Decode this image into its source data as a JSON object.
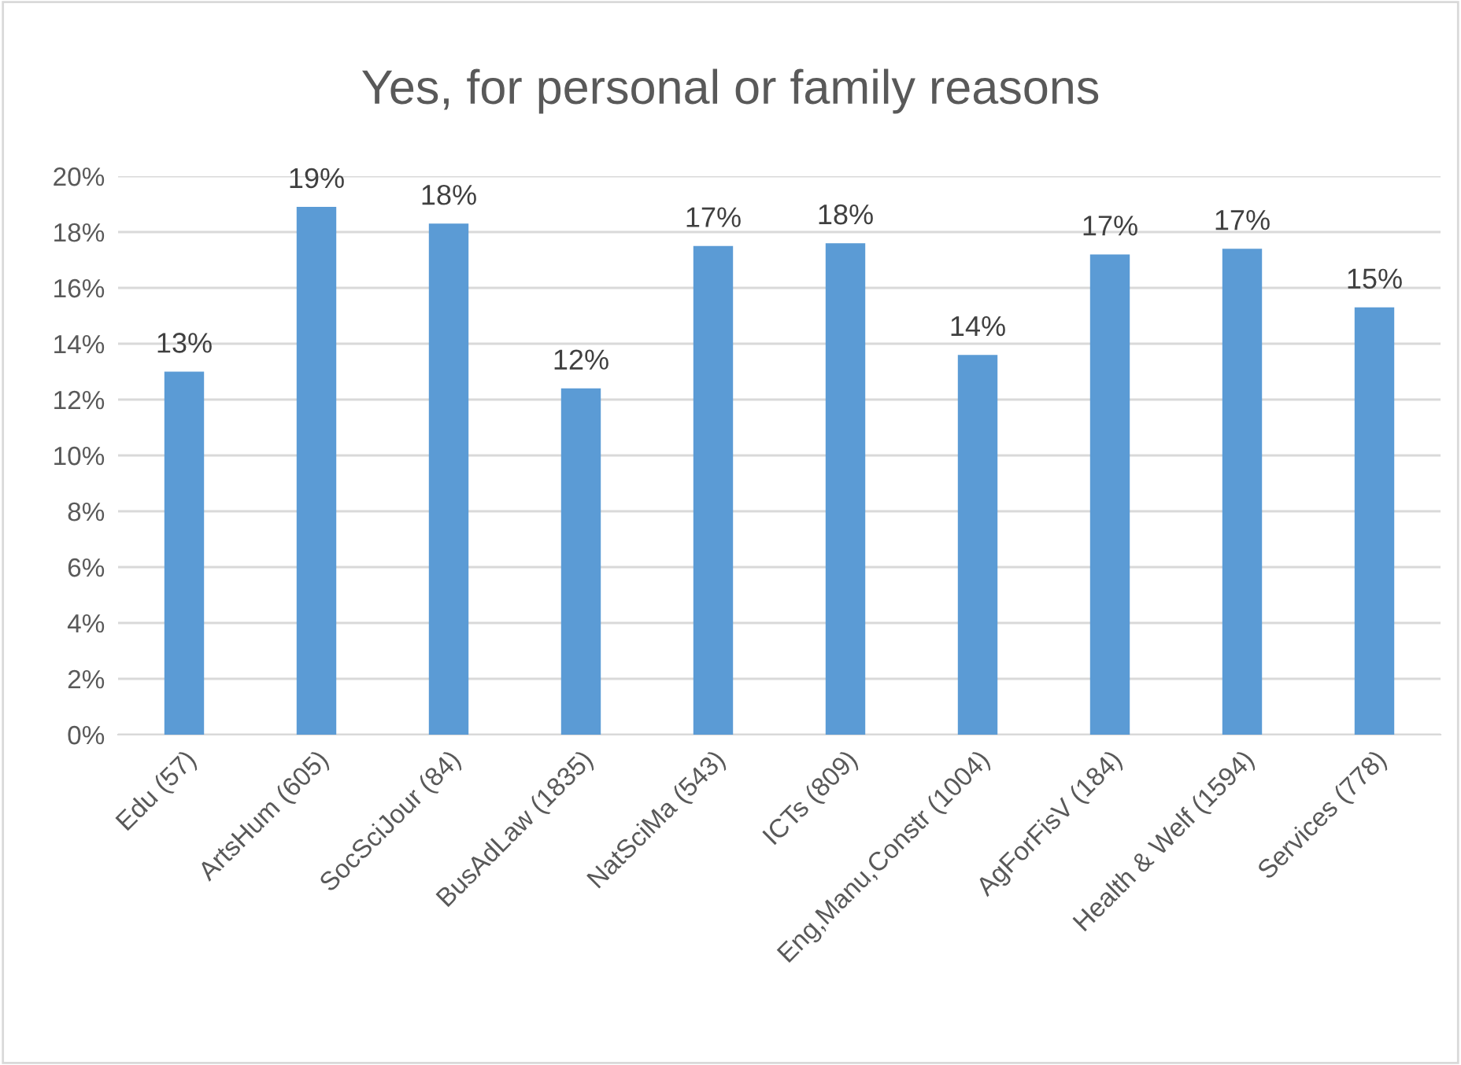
{
  "chart_data": {
    "type": "bar",
    "title": "Yes, for personal or family reasons",
    "categories": [
      "Edu (57)",
      "ArtsHum (605)",
      "SocSciJour (84)",
      "BusAdLaw (1835)",
      "NatSciMa (543)",
      "ICTs (809)",
      "Eng,Manu,Constr (1004)",
      "AgForFisV (184)",
      "Health & Welf (1594)",
      "Services (778)"
    ],
    "values": [
      13.0,
      18.9,
      18.3,
      12.4,
      17.5,
      17.6,
      13.6,
      17.2,
      17.4,
      15.3
    ],
    "value_labels": [
      "13%",
      "19%",
      "18%",
      "12%",
      "17%",
      "18%",
      "14%",
      "17%",
      "17%",
      "15%"
    ],
    "color": "#5b9bd5",
    "ylim": [
      0,
      20
    ],
    "yticks": [
      {
        "value": 0,
        "label": "0%"
      },
      {
        "value": 2,
        "label": "2%"
      },
      {
        "value": 4,
        "label": "4%"
      },
      {
        "value": 6,
        "label": "6%"
      },
      {
        "value": 8,
        "label": "8%"
      },
      {
        "value": 10,
        "label": "10%"
      },
      {
        "value": 12,
        "label": "12%"
      },
      {
        "value": 14,
        "label": "14%"
      },
      {
        "value": 16,
        "label": "16%"
      },
      {
        "value": 18,
        "label": "18%"
      },
      {
        "value": 20,
        "label": "20%"
      }
    ],
    "grid": "y",
    "legend": false
  }
}
